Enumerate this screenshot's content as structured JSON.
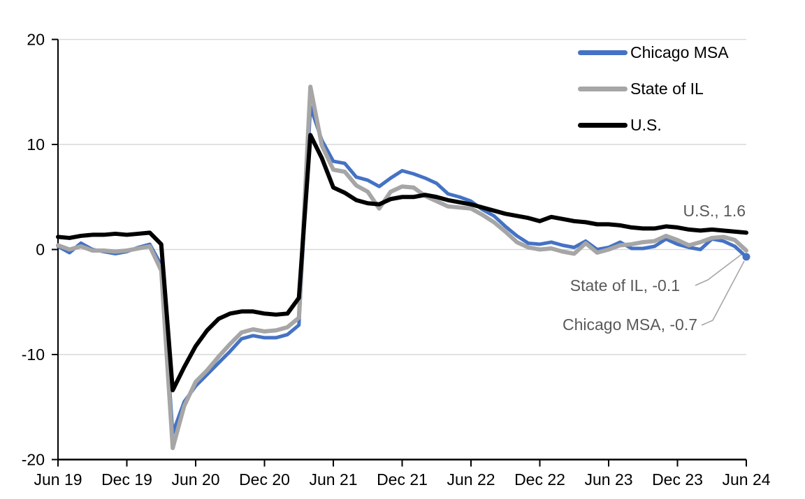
{
  "chart_data": {
    "type": "line",
    "title": "",
    "x_tick_labels": [
      "Jun 19",
      "Dec 19",
      "Jun 20",
      "Dec 20",
      "Jun 21",
      "Dec 21",
      "Jun 22",
      "Dec 22",
      "Jun 23",
      "Dec 23",
      "Jun 24"
    ],
    "x_tick_positions": [
      0,
      6,
      12,
      18,
      24,
      30,
      36,
      42,
      48,
      54,
      60
    ],
    "x_range_months": 60,
    "ylim": [
      -20,
      20
    ],
    "y_ticks": [
      20,
      10,
      0,
      -10,
      -20
    ],
    "y_tick_labels": [
      "20",
      "10",
      "0",
      "-10",
      "-20"
    ],
    "gridlines_at": [
      20,
      10,
      0,
      -10
    ],
    "grid": true,
    "legend_position": "top-right",
    "series": [
      {
        "name": "Chicago MSA",
        "color": "#4472C4",
        "line_width": 5,
        "end_marker": true,
        "end_value": -0.7,
        "values": [
          0.3,
          -0.3,
          0.6,
          0.0,
          -0.2,
          -0.4,
          -0.2,
          0.2,
          0.5,
          -1.5,
          -17.5,
          -14.5,
          -13.0,
          -11.9,
          -10.8,
          -9.7,
          -8.5,
          -8.2,
          -8.4,
          -8.4,
          -8.1,
          -7.2,
          13.6,
          10.4,
          8.4,
          8.2,
          6.9,
          6.6,
          6.0,
          6.8,
          7.5,
          7.2,
          6.8,
          6.3,
          5.3,
          5.0,
          4.6,
          3.8,
          3.2,
          2.2,
          1.3,
          0.6,
          0.5,
          0.7,
          0.4,
          0.2,
          0.8,
          0.0,
          0.2,
          0.7,
          0.1,
          0.1,
          0.3,
          1.0,
          0.5,
          0.2,
          0.0,
          1.0,
          0.8,
          0.3,
          -0.7
        ]
      },
      {
        "name": "State of IL",
        "color": "#A6A6A6",
        "line_width": 6,
        "end_marker": false,
        "end_value": -0.1,
        "values": [
          0.4,
          0.0,
          0.3,
          -0.1,
          -0.1,
          -0.2,
          -0.1,
          0.1,
          0.3,
          -2.0,
          -18.9,
          -14.9,
          -12.6,
          -11.5,
          -10.2,
          -9.0,
          -7.9,
          -7.6,
          -7.8,
          -7.7,
          -7.4,
          -6.5,
          15.5,
          9.9,
          7.6,
          7.4,
          6.1,
          5.5,
          3.9,
          5.5,
          6.0,
          5.9,
          5.1,
          4.6,
          4.1,
          4.0,
          3.9,
          3.3,
          2.6,
          1.7,
          0.7,
          0.2,
          0.0,
          0.1,
          -0.2,
          -0.4,
          0.6,
          -0.3,
          0.0,
          0.4,
          0.5,
          0.7,
          0.8,
          1.3,
          0.9,
          0.4,
          0.7,
          1.1,
          1.2,
          0.9,
          -0.1
        ]
      },
      {
        "name": "U.S.",
        "color": "#000000",
        "line_width": 6,
        "end_marker": false,
        "end_value": 1.6,
        "values": [
          1.2,
          1.1,
          1.3,
          1.4,
          1.4,
          1.5,
          1.4,
          1.5,
          1.6,
          0.5,
          -13.4,
          -11.2,
          -9.2,
          -7.7,
          -6.6,
          -6.1,
          -5.9,
          -5.9,
          -6.1,
          -6.2,
          -6.1,
          -4.6,
          10.9,
          8.7,
          5.9,
          5.4,
          4.7,
          4.4,
          4.3,
          4.8,
          5.0,
          5.0,
          5.2,
          5.0,
          4.7,
          4.5,
          4.3,
          4.0,
          3.7,
          3.4,
          3.2,
          3.0,
          2.7,
          3.1,
          2.9,
          2.7,
          2.6,
          2.4,
          2.4,
          2.3,
          2.1,
          2.0,
          2.0,
          2.2,
          2.1,
          1.9,
          1.8,
          1.9,
          1.8,
          1.7,
          1.6
        ]
      }
    ],
    "annotations": [
      {
        "text": "U.S., 1.6"
      },
      {
        "text": "State of IL, -0.1"
      },
      {
        "text": "Chicago MSA, -0.7"
      }
    ],
    "colors": {
      "gridline": "#D9D9D9",
      "axis": "#000000",
      "tick_label": "#000000",
      "annotation_text": "#595959",
      "leader_line": "#A6A6A6",
      "background": "#FFFFFF"
    }
  }
}
